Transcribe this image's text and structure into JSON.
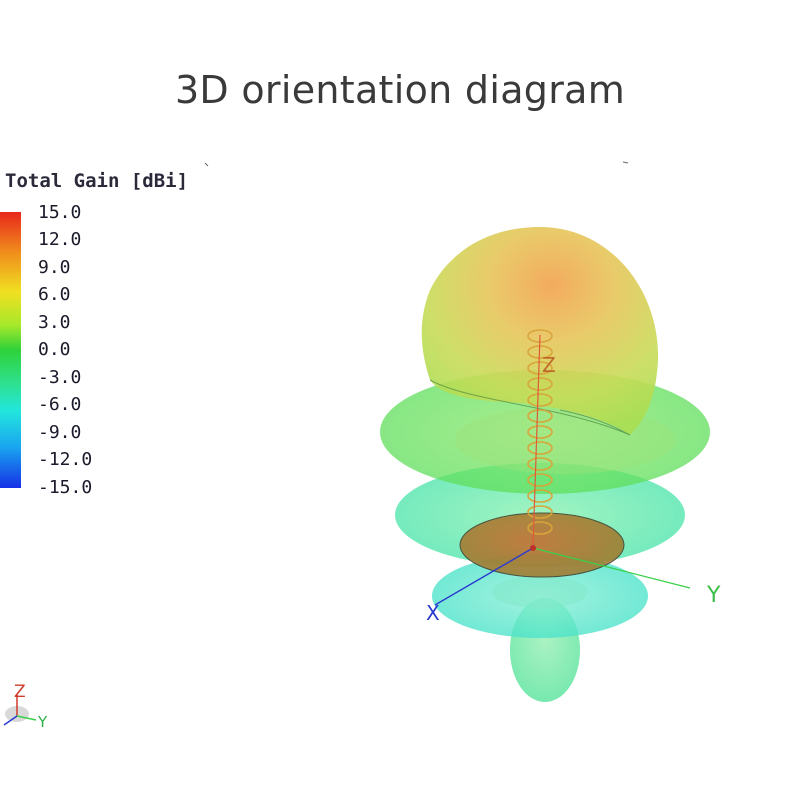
{
  "title": "3D orientation diagram",
  "legend": {
    "title": "Total Gain [dBi]",
    "ticks": [
      "15.0",
      "12.0",
      "9.0",
      "6.0",
      "3.0",
      "0.0",
      "-3.0",
      "-6.0",
      "-9.0",
      "-12.0",
      "-15.0"
    ]
  },
  "axes": {
    "z": "Z",
    "x": "X",
    "y": "Y"
  },
  "triad": {
    "z": "Z",
    "y": "Y"
  }
}
